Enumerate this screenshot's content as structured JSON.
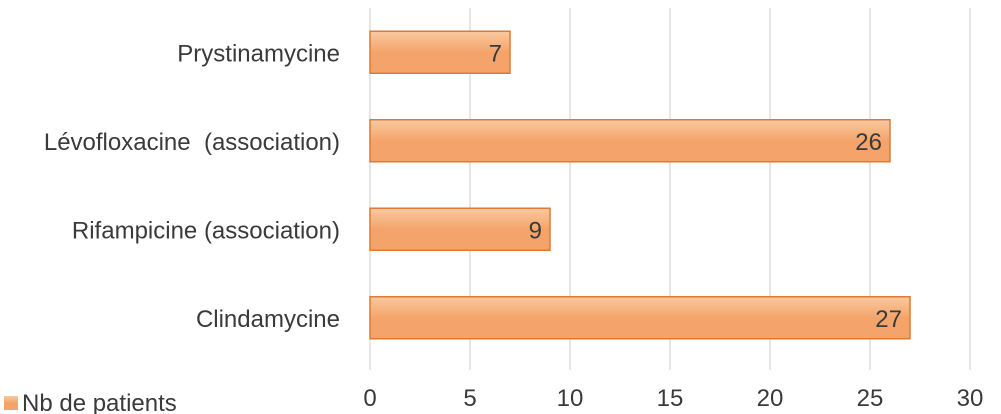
{
  "chart_data": {
    "type": "bar",
    "orientation": "horizontal",
    "categories": [
      "Prystinamycine",
      "Lévofloxacine  (association)",
      "Rifampicine (association)",
      "Clindamycine"
    ],
    "series": [
      {
        "name": "Nb de patients",
        "values": [
          7,
          26,
          9,
          27
        ]
      }
    ],
    "xlim": [
      0,
      30
    ],
    "xticks": [
      0,
      5,
      10,
      15,
      20,
      25,
      30
    ],
    "xtick_labels": [
      "0",
      "5",
      "10",
      "15",
      "20",
      "25",
      "30"
    ],
    "grid": true,
    "data_labels": true,
    "legend": "bottom-left",
    "colors": {
      "bar_fill": "#f4a46a",
      "bar_fill_light": "#f9c9a0",
      "bar_stroke": "#e07a30",
      "grid": "#d9d9d9",
      "text": "#3a3a3a"
    }
  }
}
